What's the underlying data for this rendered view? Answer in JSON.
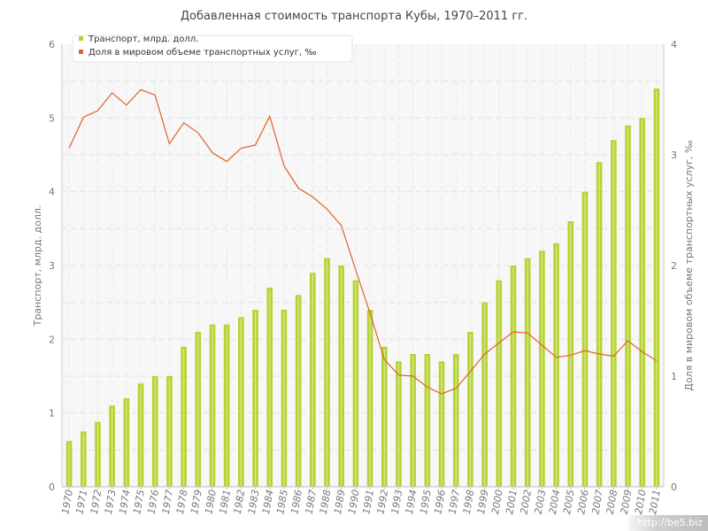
{
  "chart_data": {
    "type": "bar+line",
    "title": "Добавленная стоимость транспорта Кубы, 1970–2011 гг.",
    "ylabel_left": "Транспорт, млрд. долл.",
    "ylabel_right": "Доля в мировом объеме транспортных услуг, ‰",
    "ylim_left": [
      0,
      6
    ],
    "ylim_right": [
      0,
      4
    ],
    "yticks_left": [
      "0",
      "1",
      "2",
      "3",
      "4",
      "5",
      "6"
    ],
    "yticks_right": [
      "0",
      "1",
      "2",
      "3",
      "4"
    ],
    "legend_position": "top-left",
    "grid": true,
    "categories": [
      "1970",
      "1971",
      "1972",
      "1973",
      "1974",
      "1975",
      "1976",
      "1977",
      "1978",
      "1979",
      "1980",
      "1981",
      "1982",
      "1983",
      "1984",
      "1985",
      "1986",
      "1987",
      "1988",
      "1989",
      "1990",
      "1991",
      "1992",
      "1993",
      "1994",
      "1995",
      "1996",
      "1997",
      "1998",
      "1999",
      "2000",
      "2001",
      "2002",
      "2003",
      "2004",
      "2005",
      "2006",
      "2007",
      "2008",
      "2009",
      "2010",
      "2011"
    ],
    "series": [
      {
        "name": "Транспорт, млрд. долл.",
        "type": "bar",
        "axis": "left",
        "color": "#b5d334",
        "values": [
          0.62,
          0.75,
          0.88,
          1.1,
          1.2,
          1.4,
          1.5,
          1.5,
          1.9,
          2.1,
          2.2,
          2.2,
          2.3,
          2.4,
          2.7,
          2.4,
          2.6,
          2.9,
          3.1,
          3.0,
          2.8,
          2.4,
          1.9,
          1.7,
          1.8,
          1.8,
          1.7,
          1.8,
          2.1,
          2.5,
          2.8,
          3.0,
          3.1,
          3.2,
          3.3,
          3.6,
          4.0,
          4.4,
          4.7,
          4.9,
          5.0,
          5.4
        ]
      },
      {
        "name": "Доля в мировом объеме транспортных услуг, ‰",
        "type": "line",
        "axis": "right",
        "color": "#e0622a",
        "values": [
          3.06,
          3.34,
          3.4,
          3.56,
          3.45,
          3.59,
          3.54,
          3.1,
          3.29,
          3.2,
          3.02,
          2.94,
          3.06,
          3.09,
          3.35,
          2.9,
          2.7,
          2.62,
          2.51,
          2.36,
          1.96,
          1.57,
          1.15,
          1.01,
          1.0,
          0.9,
          0.84,
          0.89,
          1.04,
          1.2,
          1.3,
          1.4,
          1.39,
          1.28,
          1.17,
          1.19,
          1.23,
          1.2,
          1.18,
          1.32,
          1.22,
          1.14
        ]
      }
    ]
  },
  "watermark": "http://be5.biz"
}
